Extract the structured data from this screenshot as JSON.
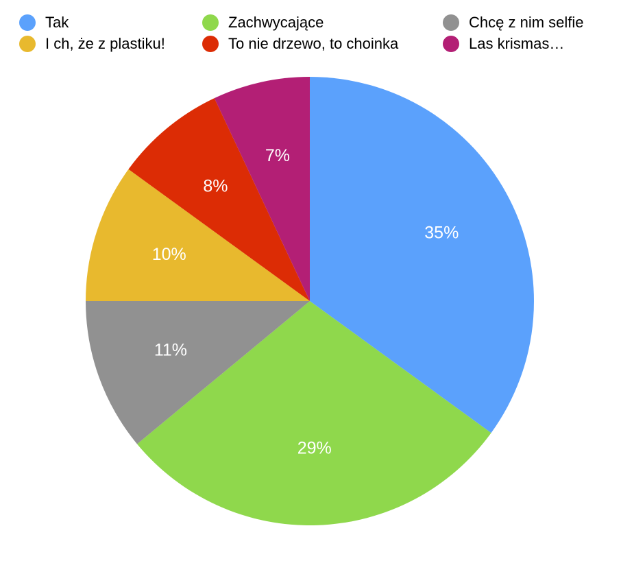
{
  "chart_data": {
    "type": "pie",
    "categories": [
      "Tak",
      "Zachwycające",
      "Chcę z nim selfie",
      "I ch, że z plastiku!",
      "To nie drzewo, to choinka",
      "Las krismas…"
    ],
    "values": [
      35,
      29,
      11,
      10,
      8,
      7
    ],
    "value_labels": [
      "35%",
      "29%",
      "11%",
      "10%",
      "8%",
      "7%"
    ],
    "colors": [
      "#5ba1fc",
      "#8fd84c",
      "#919191",
      "#e8b92e",
      "#dc2c05",
      "#b31f75"
    ],
    "legend": "top"
  }
}
